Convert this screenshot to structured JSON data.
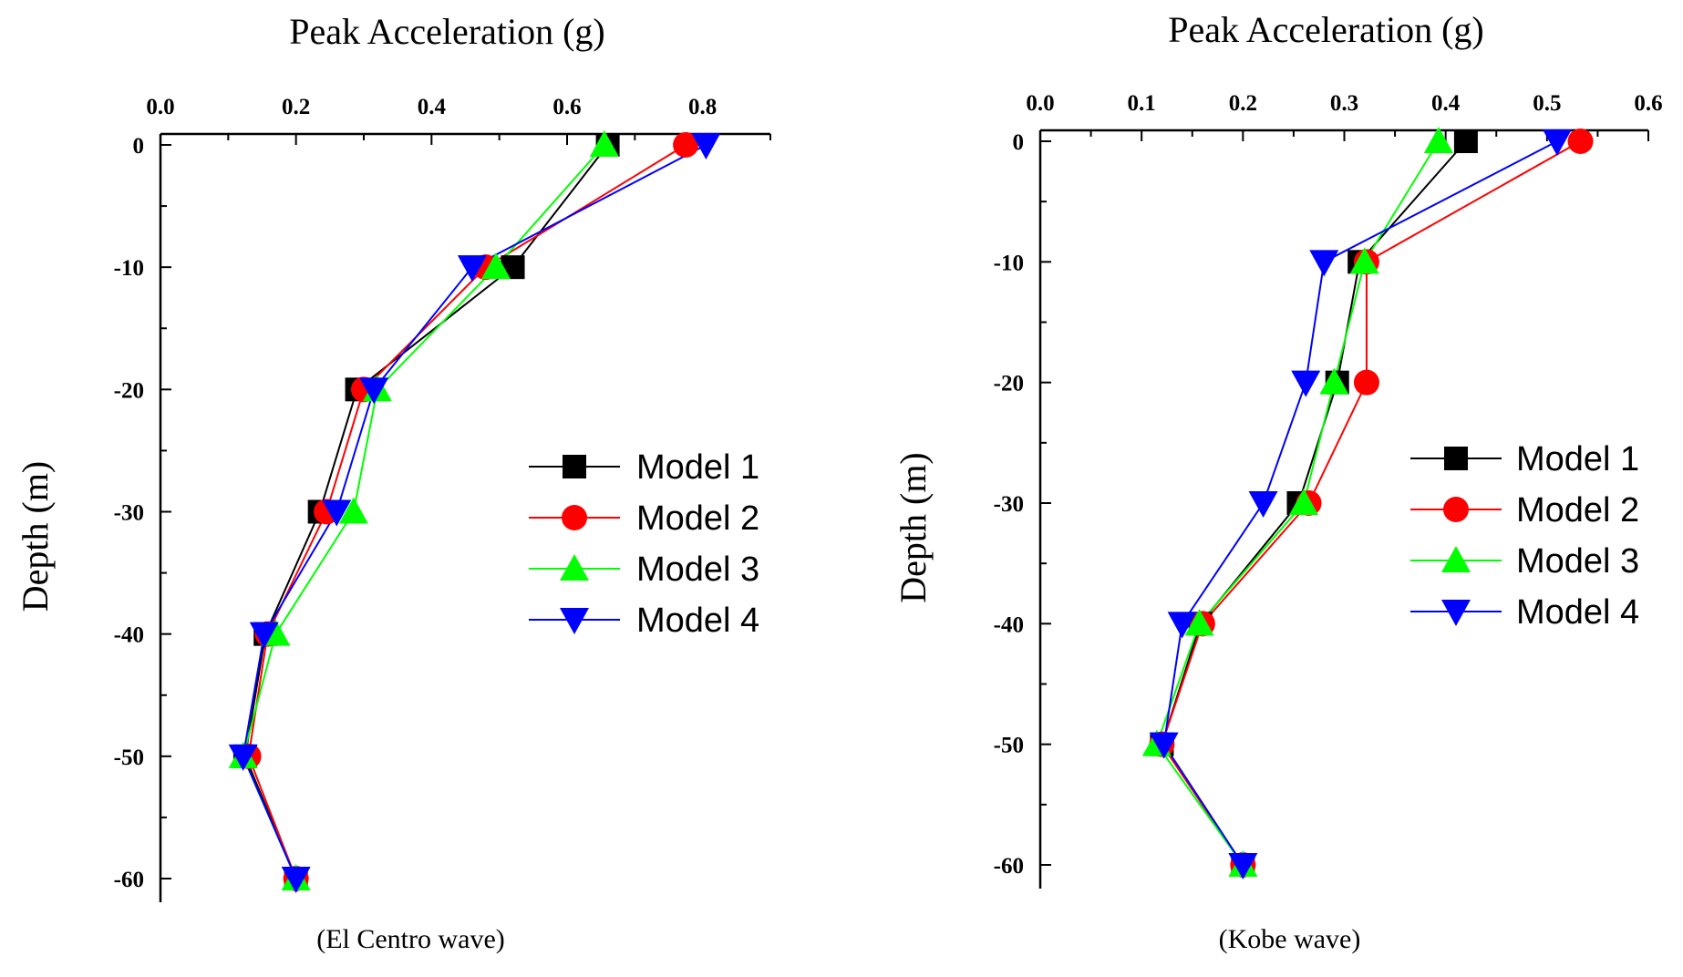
{
  "chart_data": [
    {
      "type": "line",
      "caption": "(El Centro wave)",
      "xlabel": "Peak Acceleration (g)",
      "ylabel": "Depth (m)",
      "xlim": [
        0,
        0.9
      ],
      "ylim": [
        -62,
        1
      ],
      "xticks": [
        0.0,
        0.2,
        0.4,
        0.6,
        0.8
      ],
      "xtick_labels": [
        "0.0",
        "0.2",
        "0.4",
        "0.6",
        "0.8"
      ],
      "yticks": [
        0,
        -10,
        -20,
        -30,
        -40,
        -50,
        -60
      ],
      "ytick_labels": [
        "0",
        "-10",
        "-20",
        "-30",
        "-40",
        "-50",
        "-60"
      ],
      "x_axis_position": "top",
      "grid": false,
      "legend_position": "right",
      "depth": [
        0,
        -10,
        -20,
        -30,
        -40,
        -50,
        -60
      ],
      "series": [
        {
          "name": "Model 1",
          "color": "#000000",
          "marker": "square",
          "values": [
            0.66,
            0.52,
            0.29,
            0.235,
            0.155,
            0.125,
            0.2
          ]
        },
        {
          "name": "Model 2",
          "color": "#ff0000",
          "marker": "circle",
          "values": [
            0.775,
            0.48,
            0.3,
            0.245,
            0.158,
            0.13,
            0.2
          ]
        },
        {
          "name": "Model 3",
          "color": "#00ff00",
          "marker": "triangle-up",
          "values": [
            0.655,
            0.495,
            0.32,
            0.285,
            0.17,
            0.122,
            0.2
          ]
        },
        {
          "name": "Model 4",
          "color": "#0000ff",
          "marker": "triangle-down",
          "values": [
            0.805,
            0.46,
            0.315,
            0.26,
            0.153,
            0.122,
            0.2
          ]
        }
      ]
    },
    {
      "type": "line",
      "caption": "(Kobe wave)",
      "xlabel": "Peak Acceleration (g)",
      "ylabel": "Depth (m)",
      "xlim": [
        0,
        0.6
      ],
      "ylim": [
        -62,
        1
      ],
      "xticks": [
        0.0,
        0.1,
        0.2,
        0.3,
        0.4,
        0.5,
        0.6
      ],
      "xtick_labels": [
        "0.0",
        "0.1",
        "0.2",
        "0.3",
        "0.4",
        "0.5",
        "0.6"
      ],
      "yticks": [
        0,
        -10,
        -20,
        -30,
        -40,
        -50,
        -60
      ],
      "ytick_labels": [
        "0",
        "-10",
        "-20",
        "-30",
        "-40",
        "-50",
        "-60"
      ],
      "x_axis_position": "top",
      "grid": false,
      "legend_position": "right",
      "depth": [
        0,
        -10,
        -20,
        -30,
        -40,
        -50,
        -60
      ],
      "series": [
        {
          "name": "Model 1",
          "color": "#000000",
          "marker": "square",
          "values": [
            0.42,
            0.315,
            0.293,
            0.255,
            0.158,
            0.12,
            0.2
          ]
        },
        {
          "name": "Model 2",
          "color": "#ff0000",
          "marker": "circle",
          "values": [
            0.533,
            0.322,
            0.322,
            0.265,
            0.16,
            0.12,
            0.2
          ]
        },
        {
          "name": "Model 3",
          "color": "#00ff00",
          "marker": "triangle-up",
          "values": [
            0.393,
            0.32,
            0.29,
            0.26,
            0.157,
            0.115,
            0.2
          ]
        },
        {
          "name": "Model 4",
          "color": "#0000ff",
          "marker": "triangle-down",
          "values": [
            0.51,
            0.28,
            0.262,
            0.22,
            0.14,
            0.122,
            0.2
          ]
        }
      ]
    }
  ]
}
